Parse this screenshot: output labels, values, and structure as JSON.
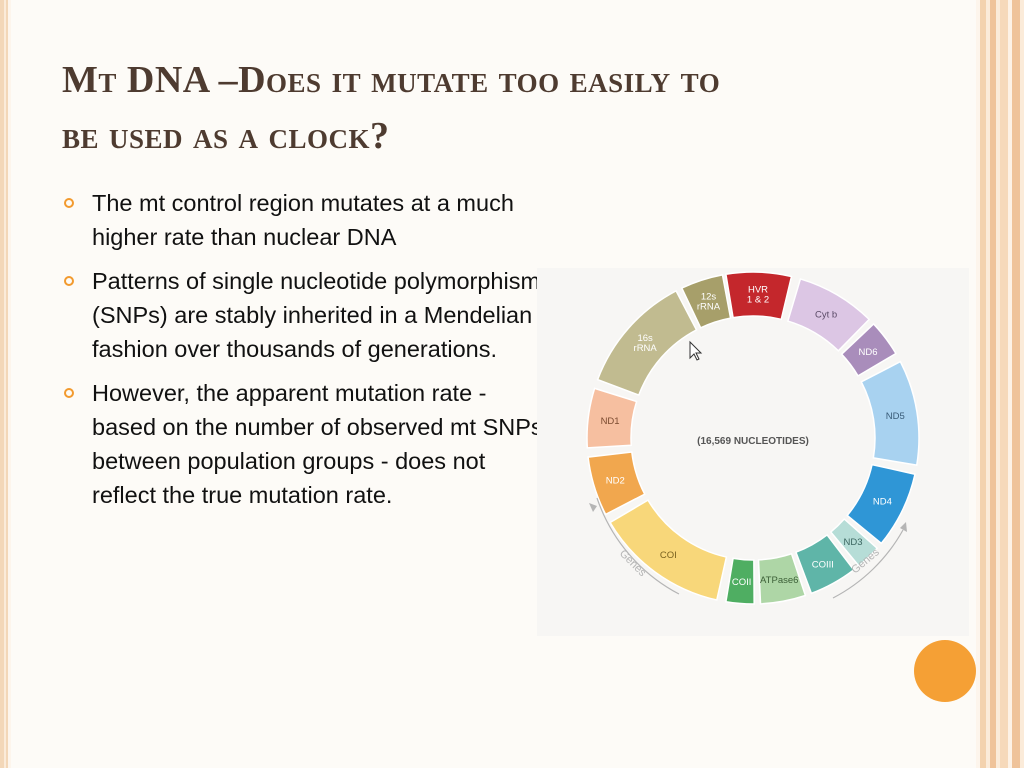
{
  "slide": {
    "title_line1": "Mt DNA –Does it mutate too easily to",
    "title_line2": "be used as a clock?",
    "bullets": [
      "The mt control region mutates at a much higher rate than nuclear DNA",
      "Patterns of single nucleotide polymorphisms (SNPs) are stably inherited in a Mendelian fashion over thousands of generations.",
      "However, the apparent mutation rate - based on the number of observed mt SNPs between population groups - does not reflect the true mutation rate."
    ]
  },
  "diagram": {
    "center_label": "(16,569 NUCLEOTIDES)",
    "genes_label_left": "Genes",
    "genes_label_right": "Genes",
    "segments": [
      {
        "label": "HVR\n1 & 2",
        "color": "#c4272c",
        "text_color": "#ffffff"
      },
      {
        "label": "Cyt b",
        "color": "#dcc6e4",
        "text_color": "#5a4a66"
      },
      {
        "label": "ND6",
        "color": "#a98dbb",
        "text_color": "#ffffff"
      },
      {
        "label": "ND5",
        "color": "#a8d2f0",
        "text_color": "#3a5c78"
      },
      {
        "label": "ND4",
        "color": "#2f96d6",
        "text_color": "#ffffff"
      },
      {
        "label": "ND3",
        "color": "#b6ddd7",
        "text_color": "#3b6660"
      },
      {
        "label": "COIII",
        "color": "#5fb5a8",
        "text_color": "#ffffff"
      },
      {
        "label": "ATPase6",
        "color": "#aed6a6",
        "text_color": "#3d6038"
      },
      {
        "label": "COII",
        "color": "#4fae62",
        "text_color": "#ffffff"
      },
      {
        "label": "COI",
        "color": "#f8d77a",
        "text_color": "#7a6220"
      },
      {
        "label": "ND2",
        "color": "#f1a74e",
        "text_color": "#ffffff"
      },
      {
        "label": "ND1",
        "color": "#f6bfa0",
        "text_color": "#7b4b30"
      },
      {
        "label": "16s\nrRNA",
        "color": "#c1bb90",
        "text_color": "#ffffff"
      },
      {
        "label": "12s\nrRNA",
        "color": "#a79f6a",
        "text_color": "#ffffff"
      }
    ]
  }
}
